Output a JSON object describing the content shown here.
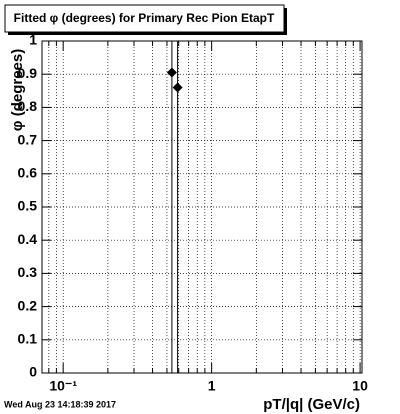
{
  "chart_data": {
    "type": "scatter",
    "title": "Fitted φ (degrees) for Primary Rec Pion EtapT",
    "x_label": "pT/|q| (GeV/c)",
    "y_label": "φ (degrees)",
    "footer": "Wed Aug 23 14:18:39 2017",
    "x": [
      0.54,
      0.59
    ],
    "values": [
      0.905,
      0.86
    ],
    "color": "#000000",
    "log_x": true,
    "grid": true,
    "xlim": [
      0.072,
      10.3
    ],
    "ylim": [
      0,
      1
    ],
    "xticks": [
      {
        "value": 0.1,
        "label": "10⁻¹"
      },
      1,
      10
    ],
    "xminorticks": [
      0.08,
      0.09,
      0.2,
      0.3,
      0.4,
      0.5,
      0.6,
      0.7,
      0.8,
      0.9,
      2,
      3,
      4,
      5,
      6,
      7,
      8,
      9
    ],
    "yticks": [
      0,
      0.1,
      0.2,
      0.3,
      0.4,
      0.5,
      0.6,
      0.7,
      0.8,
      0.9,
      1
    ]
  }
}
